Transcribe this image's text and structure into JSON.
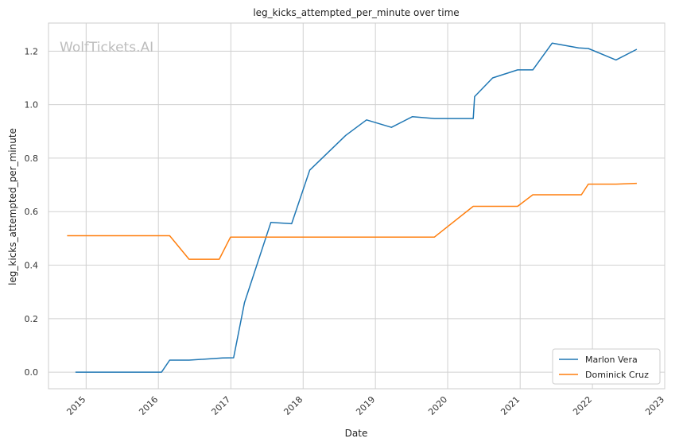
{
  "chart_data": {
    "type": "line",
    "title": "leg_kicks_attempted_per_minute over time",
    "xlabel": "Date",
    "ylabel": "leg_kicks_attempted_per_minute",
    "watermark": "WolfTickets.AI",
    "x_ticks": [
      "2015",
      "2016",
      "2017",
      "2018",
      "2019",
      "2020",
      "2021",
      "2022",
      "2023"
    ],
    "y_ticks": [
      "0.0",
      "0.2",
      "0.4",
      "0.6",
      "0.8",
      "1.0",
      "1.2"
    ],
    "xlim": [
      "2014-06-25",
      "2023-01-01"
    ],
    "ylim": [
      -0.062,
      1.305
    ],
    "grid": true,
    "legend_position": "bottom-right",
    "colors": {
      "Marlon Vera": "#1f77b4",
      "Dominick Cruz": "#ff7f0e",
      "grid": "#d0d0d0"
    },
    "series": [
      {
        "name": "Marlon Vera",
        "x": [
          "2014-11-08",
          "2016-01-17",
          "2016-02-27",
          "2016-06-04",
          "2016-11-19",
          "2017-01-15",
          "2017-03-11",
          "2017-07-22",
          "2017-11-04",
          "2018-02-03",
          "2018-08-04",
          "2018-11-17",
          "2019-03-23",
          "2019-07-06",
          "2019-10-26",
          "2020-05-09",
          "2020-05-16",
          "2020-08-15",
          "2020-12-19",
          "2021-03-06",
          "2021-06-12",
          "2021-10-23",
          "2021-12-11",
          "2022-04-30",
          "2022-08-13"
        ],
        "y": [
          0.0,
          0.0,
          0.045,
          0.045,
          0.053,
          0.054,
          0.26,
          0.56,
          0.555,
          0.755,
          0.885,
          0.943,
          0.915,
          0.955,
          0.948,
          0.948,
          1.03,
          1.1,
          1.13,
          1.13,
          1.23,
          1.212,
          1.21,
          1.167,
          1.207
        ]
      },
      {
        "name": "Dominick Cruz",
        "x": [
          "2014-09-27",
          "2016-01-17",
          "2016-02-27",
          "2016-06-04",
          "2016-11-03",
          "2016-12-30",
          "2017-01-15",
          "2019-10-26",
          "2020-05-09",
          "2020-12-19",
          "2021-03-06",
          "2021-11-06",
          "2021-12-11",
          "2022-04-30",
          "2022-08-13"
        ],
        "y": [
          0.51,
          0.51,
          0.51,
          0.422,
          0.422,
          0.505,
          0.505,
          0.505,
          0.62,
          0.62,
          0.663,
          0.663,
          0.703,
          0.703,
          0.706
        ]
      }
    ]
  }
}
